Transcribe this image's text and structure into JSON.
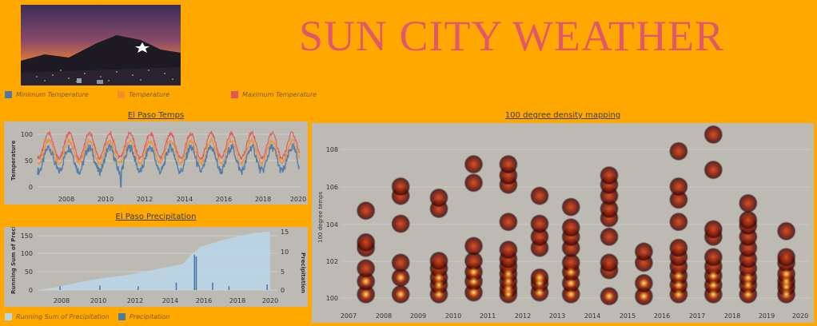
{
  "header": {
    "title": "SUN CITY WEATHER",
    "photo_icon": "mountain-star-night-photo"
  },
  "legend_top": {
    "items": [
      {
        "label": "Minimum Temperature",
        "color": "#4e79a7"
      },
      {
        "label": "Temperature",
        "color": "#f28e2b"
      },
      {
        "label": "Maximum Temperature",
        "color": "#e15759"
      }
    ]
  },
  "temps": {
    "title": "El Paso Temps",
    "ylabel": "Temperature",
    "yticks": [
      "100",
      "50",
      "0"
    ],
    "xticks": [
      "2008",
      "2010",
      "2012",
      "2014",
      "2016",
      "2018",
      "2020"
    ]
  },
  "precip": {
    "title": "El Paso Precipitation",
    "ylabel_left": "Running Sum of Precip..",
    "ylabel_right": "Precipitation",
    "yticks_left": [
      "150",
      "100",
      "50",
      "0"
    ],
    "yticks_right": [
      "15",
      "10",
      "5",
      "0"
    ],
    "xticks": [
      "2008",
      "2010",
      "2012",
      "2014",
      "2016",
      "2018",
      "2020"
    ]
  },
  "legend_bottom": {
    "items": [
      {
        "label": "Running Sum of Precipitation",
        "color": "#b9d5e6"
      },
      {
        "label": "Precipitation",
        "color": "#4e79a7"
      }
    ]
  },
  "density": {
    "title": "100 degree density mapping",
    "ylabel": "100 degree temps",
    "yticks": [
      "108",
      "106",
      "104",
      "102",
      "100"
    ],
    "xticks": [
      "2007",
      "2008",
      "2009",
      "2010",
      "2011",
      "2012",
      "2013",
      "2014",
      "2015",
      "2016",
      "2017",
      "2018",
      "2019",
      "2020"
    ]
  },
  "chart_data": [
    {
      "type": "line",
      "title": "El Paso Temps",
      "ylabel": "Temperature",
      "ylim": [
        0,
        110
      ],
      "x_range": [
        2007,
        2020
      ],
      "series": [
        {
          "name": "Minimum Temperature",
          "color": "#4e79a7",
          "seasonal_low": 30,
          "seasonal_high": 75
        },
        {
          "name": "Temperature",
          "color": "#f28e2b",
          "seasonal_low": 45,
          "seasonal_high": 88
        },
        {
          "name": "Maximum Temperature",
          "color": "#e15759",
          "seasonal_low": 55,
          "seasonal_high": 102
        }
      ]
    },
    {
      "type": "area",
      "title": "El Paso Precipitation",
      "ylabel": "Running Sum of Precip..",
      "y2label": "Precipitation",
      "ylim": [
        0,
        160
      ],
      "y2lim": [
        0,
        15
      ],
      "series": [
        {
          "name": "Running Sum of Precipitation",
          "x": [
            2007,
            2008,
            2009,
            2010,
            2011,
            2012,
            2013,
            2014,
            2015,
            2015.5,
            2016,
            2017,
            2018,
            2019,
            2019.8
          ],
          "values": [
            0,
            8,
            18,
            28,
            36,
            42,
            52,
            62,
            72,
            100,
            120,
            135,
            148,
            158,
            162
          ]
        },
        {
          "name": "Precipitation",
          "x": [
            2008.2,
            2010.4,
            2012.5,
            2014.6,
            2015.6,
            2015.7,
            2016.6,
            2017.5,
            2019.6
          ],
          "values": [
            1,
            1.2,
            1,
            2,
            9.5,
            9,
            2,
            1,
            1.5
          ]
        }
      ]
    },
    {
      "type": "scatter",
      "title": "100 degree density mapping",
      "ylabel": "100 degree temps",
      "ylim": [
        99.5,
        109
      ],
      "x_range": [
        2007,
        2020.2
      ],
      "points": [
        {
          "x": 2007.5,
          "y": [
            100.2,
            100.9,
            101.6,
            102.7,
            103.0,
            104.7
          ]
        },
        {
          "x": 2008.5,
          "y": [
            100.2,
            101.1,
            101.9,
            104.0,
            105.5,
            106.0
          ]
        },
        {
          "x": 2009.6,
          "y": [
            100.2,
            100.7,
            101.1,
            101.6,
            102.0,
            104.8,
            105.4
          ]
        },
        {
          "x": 2010.6,
          "y": [
            100.3,
            100.9,
            101.4,
            102.0,
            102.8,
            106.2,
            107.2
          ]
        },
        {
          "x": 2011.6,
          "y": [
            100.2,
            100.5,
            100.9,
            101.3,
            101.7,
            102.1,
            102.6,
            104.1,
            106.1,
            106.6,
            107.2
          ]
        },
        {
          "x": 2012.5,
          "y": [
            100.3,
            100.8,
            101.1,
            102.7,
            103.3,
            104.0,
            105.5
          ]
        },
        {
          "x": 2013.4,
          "y": [
            100.2,
            100.8,
            101.4,
            101.9,
            102.7,
            103.3,
            103.8,
            104.9
          ]
        },
        {
          "x": 2014.5,
          "y": [
            100.1,
            101.5,
            101.9,
            103.3,
            104.3,
            104.8,
            105.5,
            106.1,
            106.6
          ]
        },
        {
          "x": 2015.5,
          "y": [
            100.1,
            100.8,
            101.9,
            102.5
          ]
        },
        {
          "x": 2016.5,
          "y": [
            100.2,
            100.7,
            101.2,
            101.7,
            102.2,
            102.7,
            104.1,
            105.3,
            106.0,
            107.9
          ]
        },
        {
          "x": 2017.5,
          "y": [
            100.2,
            100.7,
            101.2,
            101.7,
            102.2,
            103.3,
            103.7,
            106.9,
            108.8
          ]
        },
        {
          "x": 2018.5,
          "y": [
            100.2,
            100.7,
            101.1,
            101.6,
            102.1,
            102.7,
            103.3,
            103.9,
            104.2,
            105.1
          ]
        },
        {
          "x": 2019.6,
          "y": [
            100.2,
            100.6,
            100.9,
            101.3,
            101.9,
            102.2,
            103.6
          ]
        }
      ]
    }
  ]
}
